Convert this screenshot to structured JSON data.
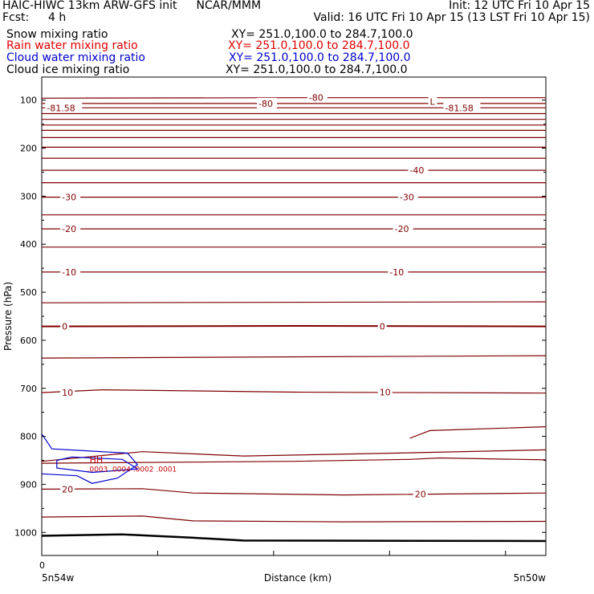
{
  "header": {
    "title": "HAIC-HIWC 13km ARW-GFS init",
    "org": "NCAR/MMM",
    "init": "Init: 12 UTC Fri 10 Apr 15",
    "fcst_label": "Fcst:",
    "fcst_value": "4 h",
    "valid": "Valid: 16 UTC Fri 10 Apr 15 (13 LST Fri 10 Apr 15)",
    "fields": [
      {
        "name": "Snow mixing ratio",
        "xy": "XY= 251.0,100.0 to 284.7,100.0",
        "color": "#000000"
      },
      {
        "name": "Rain water mixing ratio",
        "xy": "XY= 251.0,100.0 to 284.7,100.0",
        "color": "#e00000"
      },
      {
        "name": "Cloud water mixing ratio",
        "xy": "XY= 251.0,100.0 to 284.7,100.0",
        "color": "#0000cc"
      },
      {
        "name": "Cloud ice mixing ratio",
        "xy": "XY= 251.0,100.0 to 284.7,100.0",
        "color": "#000000"
      }
    ]
  },
  "chart_data": {
    "type": "line",
    "ylabel": "Pressure (hPa)",
    "xlabel": "Distance (km)",
    "x_tick_labels": [
      "0"
    ],
    "x_left_label": "5n54w",
    "x_right_label": "5n50w",
    "y_ticks": [
      100,
      200,
      300,
      400,
      500,
      600,
      700,
      800,
      900,
      1000
    ],
    "ylim": [
      1048,
      52
    ],
    "xlim": [
      0,
      1
    ],
    "contour_color": "#800000",
    "cloud_color": "#0000cc",
    "temperature_isotherms": [
      {
        "label": "-80",
        "points": [
          [
            0,
            96
          ],
          [
            0.5,
            95
          ],
          [
            1,
            95
          ]
        ]
      },
      {
        "label": "-80",
        "points": [
          [
            0,
            107
          ],
          [
            0.5,
            107
          ],
          [
            1,
            107
          ]
        ]
      },
      {
        "label": "-81.58",
        "points": [
          [
            0,
            116
          ],
          [
            0.5,
            116
          ],
          [
            1,
            116
          ]
        ]
      },
      {
        "label": "",
        "points": [
          [
            0,
            128
          ],
          [
            1,
            128
          ]
        ]
      },
      {
        "label": "",
        "points": [
          [
            0,
            140
          ],
          [
            1,
            140
          ]
        ]
      },
      {
        "label": "",
        "points": [
          [
            0,
            152
          ],
          [
            1,
            152
          ]
        ]
      },
      {
        "label": "",
        "points": [
          [
            0,
            163
          ],
          [
            1,
            163
          ]
        ]
      },
      {
        "label": "",
        "points": [
          [
            0,
            178
          ],
          [
            1,
            178
          ]
        ]
      },
      {
        "label": "",
        "points": [
          [
            0,
            198
          ],
          [
            1,
            198
          ]
        ]
      },
      {
        "label": "",
        "points": [
          [
            0,
            221
          ],
          [
            1,
            221
          ]
        ]
      },
      {
        "label": "-40",
        "points": [
          [
            0,
            246
          ],
          [
            1,
            246
          ]
        ]
      },
      {
        "label": "",
        "points": [
          [
            0,
            272
          ],
          [
            1,
            272
          ]
        ]
      },
      {
        "label": "-30",
        "points": [
          [
            0,
            302
          ],
          [
            1,
            302
          ]
        ]
      },
      {
        "label": "",
        "points": [
          [
            0,
            339
          ],
          [
            1,
            339
          ]
        ]
      },
      {
        "label": "-20",
        "points": [
          [
            0,
            368
          ],
          [
            1,
            368
          ]
        ]
      },
      {
        "label": "",
        "points": [
          [
            0,
            406
          ],
          [
            1,
            406
          ]
        ]
      },
      {
        "label": "-10",
        "points": [
          [
            0,
            458
          ],
          [
            1,
            458
          ]
        ]
      },
      {
        "label": "",
        "points": [
          [
            0,
            522
          ],
          [
            1,
            520
          ]
        ]
      },
      {
        "label": "0",
        "points": [
          [
            0,
            571
          ],
          [
            0.5,
            570
          ],
          [
            1,
            571
          ]
        ]
      },
      {
        "label": "",
        "points": [
          [
            0,
            637
          ],
          [
            1,
            632
          ]
        ]
      },
      {
        "label": "10",
        "points": [
          [
            0,
            709
          ],
          [
            0.12,
            703
          ],
          [
            0.5,
            708
          ],
          [
            1,
            710
          ]
        ]
      },
      {
        "label": "",
        "points": [
          [
            0.73,
            804
          ],
          [
            0.77,
            788
          ],
          [
            1,
            780
          ]
        ]
      },
      {
        "label": "",
        "points": [
          [
            0,
            852
          ],
          [
            0.2,
            832
          ],
          [
            0.4,
            841
          ],
          [
            0.7,
            835
          ],
          [
            1,
            828
          ]
        ]
      },
      {
        "label": "",
        "points": [
          [
            0,
            856
          ],
          [
            0.5,
            852
          ],
          [
            0.73,
            848
          ],
          [
            0.79,
            845
          ],
          [
            1,
            849
          ]
        ]
      },
      {
        "label": "20",
        "points": [
          [
            0,
            910
          ],
          [
            0.2,
            909
          ],
          [
            0.3,
            918
          ],
          [
            0.6,
            922
          ],
          [
            1,
            918
          ]
        ]
      },
      {
        "label": "",
        "points": [
          [
            0,
            968
          ],
          [
            0.2,
            966
          ],
          [
            0.3,
            976
          ],
          [
            0.6,
            978
          ],
          [
            1,
            977
          ]
        ]
      }
    ],
    "surface": {
      "label": "",
      "points": [
        [
          0,
          1007
        ],
        [
          0.16,
          1004
        ],
        [
          0.3,
          1011
        ],
        [
          0.4,
          1017
        ],
        [
          1,
          1018
        ]
      ]
    },
    "contour_labels": [
      {
        "text": "-80",
        "x": 0.53,
        "p": 95
      },
      {
        "text": "-80",
        "x": 0.43,
        "p": 107
      },
      {
        "text": "-81.58",
        "x": 0.01,
        "p": 116
      },
      {
        "text": "L",
        "x": 0.77,
        "p": 103
      },
      {
        "text": "-81.58",
        "x": 0.8,
        "p": 116
      },
      {
        "text": "-40",
        "x": 0.73,
        "p": 246
      },
      {
        "text": "-30",
        "x": 0.04,
        "p": 302
      },
      {
        "text": "-30",
        "x": 0.71,
        "p": 302
      },
      {
        "text": "-20",
        "x": 0.04,
        "p": 368
      },
      {
        "text": "-20",
        "x": 0.7,
        "p": 368
      },
      {
        "text": "-10",
        "x": 0.04,
        "p": 458
      },
      {
        "text": "-10",
        "x": 0.69,
        "p": 458
      },
      {
        "text": "0",
        "x": 0.04,
        "p": 571
      },
      {
        "text": "0",
        "x": 0.67,
        "p": 571
      },
      {
        "text": "10",
        "x": 0.04,
        "p": 709
      },
      {
        "text": "10",
        "x": 0.67,
        "p": 708
      },
      {
        "text": "20",
        "x": 0.04,
        "p": 910
      },
      {
        "text": "20",
        "x": 0.74,
        "p": 920
      }
    ],
    "cloud_water_contours": [
      {
        "points": [
          [
            0,
            795
          ],
          [
            0.02,
            826
          ],
          [
            0.17,
            835
          ],
          [
            0.19,
            859
          ],
          [
            0.15,
            887
          ],
          [
            0.1,
            898
          ],
          [
            0.07,
            882
          ],
          [
            0,
            878
          ]
        ]
      },
      {
        "points": [
          [
            0.03,
            850
          ],
          [
            0.06,
            843
          ],
          [
            0.16,
            848
          ],
          [
            0.19,
            868
          ],
          [
            0.1,
            875
          ],
          [
            0.03,
            866
          ],
          [
            0.03,
            850
          ]
        ]
      }
    ],
    "rain_labels": [
      {
        "text": "HH",
        "x": 0.095,
        "p": 848
      },
      {
        "text": ".0003 .0004 .0002 .0001",
        "x": 0.09,
        "p": 867
      }
    ]
  }
}
